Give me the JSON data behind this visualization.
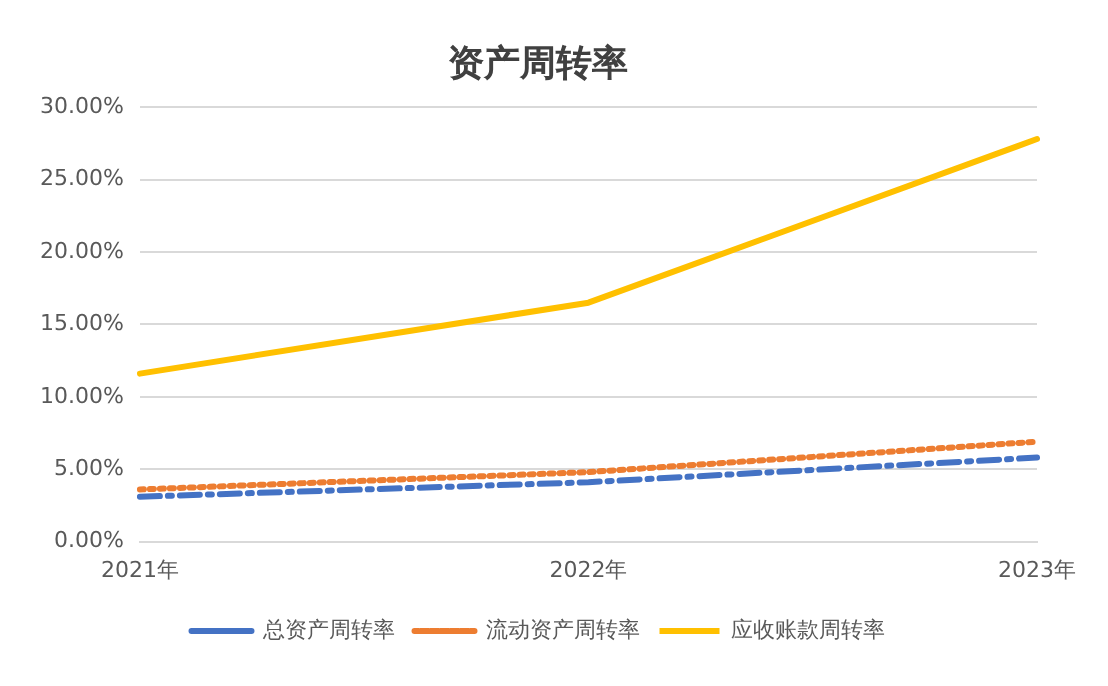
{
  "chart_data": {
    "type": "line",
    "title": "资产周转率",
    "categories": [
      "2021年",
      "2022年",
      "2023年"
    ],
    "series": [
      {
        "name": "总资产周转率",
        "color": "#4472c4",
        "line_style": "dashed",
        "values": [
          3.1,
          4.1,
          5.8
        ]
      },
      {
        "name": "流动资产周转率",
        "color": "#ed7d31",
        "line_style": "dotted",
        "values": [
          3.6,
          4.8,
          6.9
        ]
      },
      {
        "name": "应收账款周转率",
        "color": "#ffc000",
        "line_style": "solid",
        "values": [
          11.6,
          16.5,
          27.8
        ]
      }
    ],
    "ylim": [
      0,
      30
    ],
    "yticks": [
      {
        "value": 0,
        "label": "0.00%"
      },
      {
        "value": 5,
        "label": "5.00%"
      },
      {
        "value": 10,
        "label": "10.00%"
      },
      {
        "value": 15,
        "label": "15.00%"
      },
      {
        "value": 20,
        "label": "20.00%"
      },
      {
        "value": 25,
        "label": "25.00%"
      },
      {
        "value": 30,
        "label": "30.00%"
      }
    ],
    "grid": "y",
    "legend": "bottom",
    "marker": "none"
  }
}
